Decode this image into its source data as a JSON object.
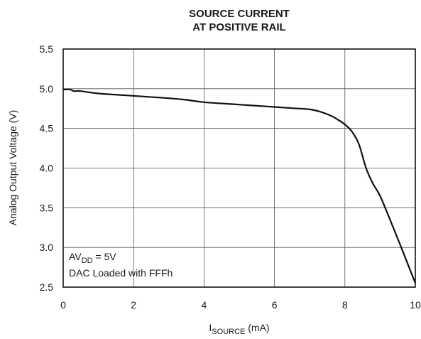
{
  "chart_data": {
    "type": "line",
    "title_lines": [
      "SOURCE CURRENT",
      "AT POSITIVE RAIL"
    ],
    "xlabel": {
      "main": "I",
      "sub": "SOURCE",
      "unit": " (mA)"
    },
    "ylabel": "Analog Output Voltage (V)",
    "xlim": [
      0,
      10
    ],
    "ylim": [
      2.5,
      5.5
    ],
    "x_ticks": [
      0,
      2,
      4,
      6,
      8,
      10
    ],
    "x_tick_labels": [
      "0",
      "2",
      "4",
      "6",
      "8",
      "10"
    ],
    "y_ticks": [
      2.5,
      3.0,
      3.5,
      4.0,
      4.5,
      5.0,
      5.5
    ],
    "y_tick_labels": [
      "2.5",
      "3.0",
      "3.5",
      "4.0",
      "4.5",
      "5.0",
      "5.5"
    ],
    "grid": true,
    "annotation": {
      "line1": {
        "main": "AV",
        "sub": "DD",
        "rest": " = 5V"
      },
      "line2": "DAC Loaded with FFFh"
    },
    "series": [
      {
        "x": [
          0,
          0.2,
          0.3,
          0.5,
          1.0,
          2.0,
          3.0,
          3.5,
          4.0,
          5.0,
          6.0,
          6.5,
          7.0,
          7.3,
          7.6,
          7.8,
          8.0,
          8.2,
          8.4,
          8.6,
          8.8,
          9.0,
          9.3,
          9.6,
          10.0
        ],
        "y": [
          4.99,
          4.99,
          4.97,
          4.97,
          4.94,
          4.91,
          4.88,
          4.86,
          4.83,
          4.8,
          4.77,
          4.755,
          4.74,
          4.71,
          4.66,
          4.61,
          4.55,
          4.46,
          4.3,
          4.0,
          3.8,
          3.65,
          3.33,
          3.0,
          2.55
        ]
      }
    ]
  }
}
